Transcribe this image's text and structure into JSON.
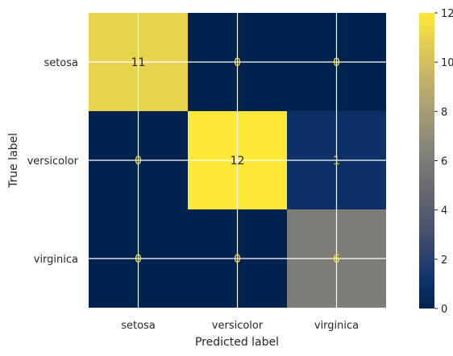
{
  "chart_data": {
    "type": "heatmap",
    "title": "",
    "xlabel": "Predicted label",
    "ylabel": "True label",
    "x_categories": [
      "setosa",
      "versicolor",
      "virginica"
    ],
    "y_categories": [
      "setosa",
      "versicolor",
      "virginica"
    ],
    "values": [
      [
        11,
        0,
        0
      ],
      [
        0,
        12,
        1
      ],
      [
        0,
        0,
        6
      ]
    ],
    "value_labels": [
      [
        "11",
        "0",
        "0"
      ],
      [
        "0",
        "12",
        "1"
      ],
      [
        "0",
        "0",
        "6"
      ]
    ],
    "colormap": "cividis",
    "vmin": 0,
    "vmax": 12,
    "colorbar_ticks": [
      0,
      2,
      4,
      6,
      8,
      10,
      12
    ],
    "colorbar_tick_labels": [
      "0",
      "2",
      "4",
      "6",
      "8",
      "10",
      "12"
    ],
    "grid": true,
    "colormap_stops": [
      "#00224e",
      "#123570",
      "#3b496c",
      "#575d6d",
      "#707173",
      "#8a8779",
      "#a59c74",
      "#c3b369",
      "#e1cc55",
      "#fee838"
    ],
    "text_color_dark": "#262626",
    "text_color_light": "#fee838",
    "grid_color": "#ffffff"
  }
}
